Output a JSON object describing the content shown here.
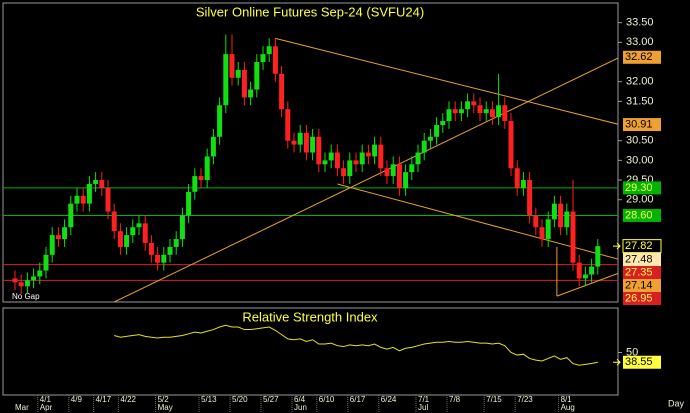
{
  "chart_data": {
    "type": "candlestick",
    "title": "Silver Online Futures Sep-24 (SVFU24)",
    "note": "No Gap",
    "x_unit_label": "Day",
    "categories": [
      null,
      null,
      null,
      null,
      "4/1",
      null,
      null,
      null,
      null,
      "4/9",
      null,
      null,
      null,
      "4/17",
      null,
      null,
      null,
      "4/22",
      null,
      null,
      null,
      null,
      null,
      "5/2",
      null,
      null,
      null,
      null,
      null,
      null,
      "5/13",
      null,
      null,
      null,
      null,
      "5/20",
      null,
      null,
      null,
      null,
      "5/27",
      null,
      null,
      null,
      null,
      "6/4",
      null,
      null,
      null,
      "6/10",
      null,
      null,
      null,
      null,
      "6/17",
      null,
      null,
      null,
      null,
      "6/24",
      null,
      null,
      null,
      null,
      null,
      "7/1",
      null,
      null,
      null,
      null,
      "7/8",
      null,
      null,
      null,
      null,
      null,
      "7/15",
      null,
      null,
      null,
      null,
      "7/23",
      null,
      null,
      null,
      null,
      null,
      null,
      "8/1",
      null,
      null,
      null,
      null,
      null,
      null
    ],
    "months": [
      "Mar",
      null,
      null,
      null,
      "Apr",
      null,
      null,
      null,
      null,
      null,
      null,
      null,
      null,
      null,
      null,
      null,
      null,
      null,
      null,
      null,
      null,
      null,
      null,
      "May",
      null,
      null,
      null,
      null,
      null,
      null,
      null,
      null,
      null,
      null,
      null,
      null,
      null,
      null,
      null,
      null,
      null,
      null,
      null,
      null,
      null,
      "Jun",
      null,
      null,
      null,
      null,
      null,
      null,
      null,
      null,
      null,
      null,
      null,
      null,
      null,
      null,
      null,
      null,
      null,
      null,
      null,
      "Jul",
      null,
      null,
      null,
      null,
      null,
      null,
      null,
      null,
      null,
      null,
      null,
      null,
      null,
      null,
      null,
      null,
      null,
      null,
      null,
      null,
      null,
      null,
      "Aug",
      null,
      null,
      null,
      null,
      null,
      null
    ],
    "open": [
      27.0,
      26.9,
      26.8,
      26.95,
      27.05,
      27.2,
      27.6,
      28.1,
      28.0,
      28.3,
      28.9,
      29.1,
      28.9,
      29.4,
      29.5,
      29.3,
      28.7,
      28.2,
      27.8,
      28.1,
      28.3,
      28.4,
      27.9,
      27.6,
      27.4,
      27.6,
      27.8,
      28.0,
      28.6,
      29.2,
      29.6,
      29.5,
      30.1,
      30.6,
      31.4,
      32.7,
      32.1,
      32.3,
      31.6,
      31.8,
      32.5,
      32.7,
      32.9,
      32.2,
      31.3,
      30.5,
      30.4,
      30.7,
      30.2,
      30.6,
      29.9,
      30.0,
      30.2,
      29.8,
      29.6,
      30.0,
      29.9,
      30.2,
      30.1,
      30.4,
      29.8,
      29.6,
      29.9,
      29.3,
      29.7,
      29.9,
      30.2,
      30.5,
      30.6,
      30.9,
      31.0,
      31.3,
      31.2,
      31.3,
      31.5,
      31.4,
      31.2,
      31.3,
      31.1,
      31.4,
      31.0,
      29.8,
      29.3,
      29.5,
      28.6,
      28.3,
      28.0,
      28.5,
      28.9,
      28.3,
      28.7,
      27.4,
      27.0,
      27.1,
      27.3
    ],
    "high": [
      27.2,
      27.1,
      27.15,
      27.25,
      27.4,
      27.8,
      28.3,
      28.3,
      28.5,
      29.1,
      29.3,
      29.3,
      29.6,
      29.7,
      29.7,
      29.5,
      28.9,
      28.4,
      28.3,
      28.5,
      28.6,
      28.6,
      28.1,
      27.8,
      27.8,
      28.0,
      28.2,
      28.8,
      29.4,
      29.8,
      29.8,
      30.3,
      30.8,
      31.6,
      33.2,
      33.2,
      32.5,
      32.5,
      32.0,
      32.7,
      32.9,
      33.1,
      33.1,
      32.4,
      31.5,
      30.7,
      30.9,
      30.9,
      30.8,
      30.8,
      30.2,
      30.4,
      30.4,
      30.0,
      30.2,
      30.2,
      30.4,
      30.4,
      30.6,
      30.6,
      30.0,
      30.1,
      30.1,
      29.9,
      30.1,
      30.4,
      30.7,
      30.8,
      31.1,
      31.2,
      31.5,
      31.5,
      31.5,
      31.7,
      31.7,
      31.6,
      31.5,
      31.5,
      32.2,
      31.6,
      31.2,
      30.0,
      29.7,
      29.7,
      28.8,
      28.5,
      28.7,
      29.1,
      29.1,
      28.9,
      29.5,
      27.6,
      27.3,
      27.5,
      28.0
    ],
    "low": [
      26.7,
      26.6,
      26.6,
      26.75,
      26.85,
      27.0,
      27.4,
      27.8,
      27.8,
      28.1,
      28.7,
      28.7,
      28.7,
      29.2,
      29.1,
      28.5,
      28.0,
      27.6,
      27.6,
      27.9,
      28.1,
      27.7,
      27.4,
      27.2,
      27.2,
      27.4,
      27.6,
      27.8,
      28.4,
      29.0,
      29.3,
      29.3,
      29.9,
      30.4,
      31.2,
      31.9,
      31.9,
      31.4,
      31.4,
      31.6,
      32.3,
      32.5,
      32.0,
      31.1,
      30.3,
      30.2,
      30.2,
      30.0,
      30.0,
      29.7,
      29.7,
      29.8,
      29.6,
      29.4,
      29.4,
      29.7,
      29.7,
      29.9,
      29.9,
      29.6,
      29.4,
      29.4,
      29.1,
      29.1,
      29.5,
      29.7,
      30.0,
      30.3,
      30.4,
      30.7,
      30.8,
      31.0,
      31.0,
      31.1,
      31.2,
      31.0,
      31.0,
      30.9,
      30.9,
      30.8,
      29.6,
      29.1,
      29.1,
      28.4,
      28.1,
      27.8,
      27.8,
      28.3,
      28.1,
      28.1,
      27.2,
      26.8,
      26.8,
      26.9,
      27.1
    ],
    "close": [
      26.9,
      26.8,
      26.95,
      27.05,
      27.2,
      27.6,
      28.1,
      28.0,
      28.3,
      28.9,
      29.1,
      28.9,
      29.4,
      29.5,
      29.3,
      28.7,
      28.2,
      27.8,
      28.1,
      28.3,
      28.4,
      27.9,
      27.6,
      27.4,
      27.6,
      27.8,
      28.0,
      28.6,
      29.2,
      29.6,
      29.5,
      30.1,
      30.6,
      31.4,
      32.7,
      32.1,
      32.3,
      31.6,
      31.8,
      32.5,
      32.7,
      32.9,
      32.2,
      31.3,
      30.5,
      30.4,
      30.7,
      30.2,
      30.6,
      29.9,
      30.0,
      30.2,
      29.8,
      29.6,
      30.0,
      29.9,
      30.2,
      30.1,
      30.4,
      29.8,
      29.6,
      29.9,
      29.3,
      29.7,
      29.9,
      30.2,
      30.5,
      30.6,
      30.9,
      31.0,
      31.3,
      31.2,
      31.3,
      31.5,
      31.4,
      31.2,
      31.3,
      31.1,
      31.4,
      31.0,
      29.8,
      29.3,
      29.5,
      28.6,
      28.3,
      28.0,
      28.5,
      28.9,
      28.3,
      28.7,
      27.4,
      27.0,
      27.1,
      27.3,
      27.82
    ],
    "up_color": "#10e010",
    "down_color": "#ff2020",
    "last_label_color": "#ffff40",
    "ylim": [
      26.4,
      34.0
    ],
    "yticks": [
      {
        "value": 33.5,
        "label": "33.50"
      },
      {
        "value": 33.0,
        "label": "33.00"
      },
      {
        "value": 32.0,
        "label": "32.00"
      },
      {
        "value": 31.5,
        "label": "31.50"
      },
      {
        "value": 30.5,
        "label": "30.50"
      },
      {
        "value": 30.0,
        "label": "30.00"
      },
      {
        "value": 29.5,
        "label": "29.50"
      },
      {
        "value": 29.0,
        "label": "29.00"
      }
    ],
    "levels": [
      {
        "value": 29.3,
        "label": "29.30",
        "color": "#00b400"
      },
      {
        "value": 28.6,
        "label": "28.60",
        "color": "#00b400"
      },
      {
        "value": 27.35,
        "color": "#d82020"
      },
      {
        "value": 26.95,
        "color": "#d82020"
      }
    ],
    "trend_color": "#e8a030",
    "trendlines": [
      {
        "x": [
          16,
          97.5
        ],
        "y": [
          26.4,
          32.62
        ],
        "label_color": "#f0a030"
      },
      {
        "x": [
          42,
          97.5
        ],
        "y": [
          33.1,
          30.91
        ],
        "label_color": "#f0a030"
      },
      {
        "x": [
          52,
          97.5
        ],
        "y": [
          29.4,
          27.48
        ],
        "label_color": "#ffe8b0"
      },
      {
        "x": [
          87.4,
          97.5
        ],
        "y": [
          26.55,
          27.14
        ],
        "label_color": "#f0a030"
      },
      {
        "x": [
          87.4,
          87.4
        ],
        "y": [
          26.55,
          27.8
        ]
      }
    ],
    "indicator": {
      "title": "Relative Strength Index",
      "color": "#e8e020",
      "label_color": "#ffff40",
      "ylim": [
        0,
        100
      ],
      "yticks": [
        50
      ],
      "values": [
        null,
        null,
        null,
        null,
        null,
        null,
        null,
        null,
        null,
        null,
        null,
        null,
        null,
        null,
        null,
        null,
        70,
        68,
        69,
        70,
        71,
        69,
        68,
        67,
        68,
        68,
        69,
        70,
        72,
        74,
        73,
        75,
        77,
        80,
        82,
        80,
        80,
        77,
        77,
        78,
        79,
        80,
        76,
        71,
        66,
        65,
        66,
        63,
        65,
        60,
        60,
        61,
        58,
        57,
        59,
        58,
        59,
        58,
        60,
        56,
        54,
        56,
        52,
        55,
        56,
        58,
        60,
        61,
        62,
        62,
        63,
        62,
        62,
        63,
        62,
        61,
        61,
        60,
        61,
        58,
        50,
        47,
        48,
        43,
        41,
        40,
        43,
        46,
        42,
        44,
        37,
        35,
        36,
        37,
        38.55
      ]
    }
  }
}
